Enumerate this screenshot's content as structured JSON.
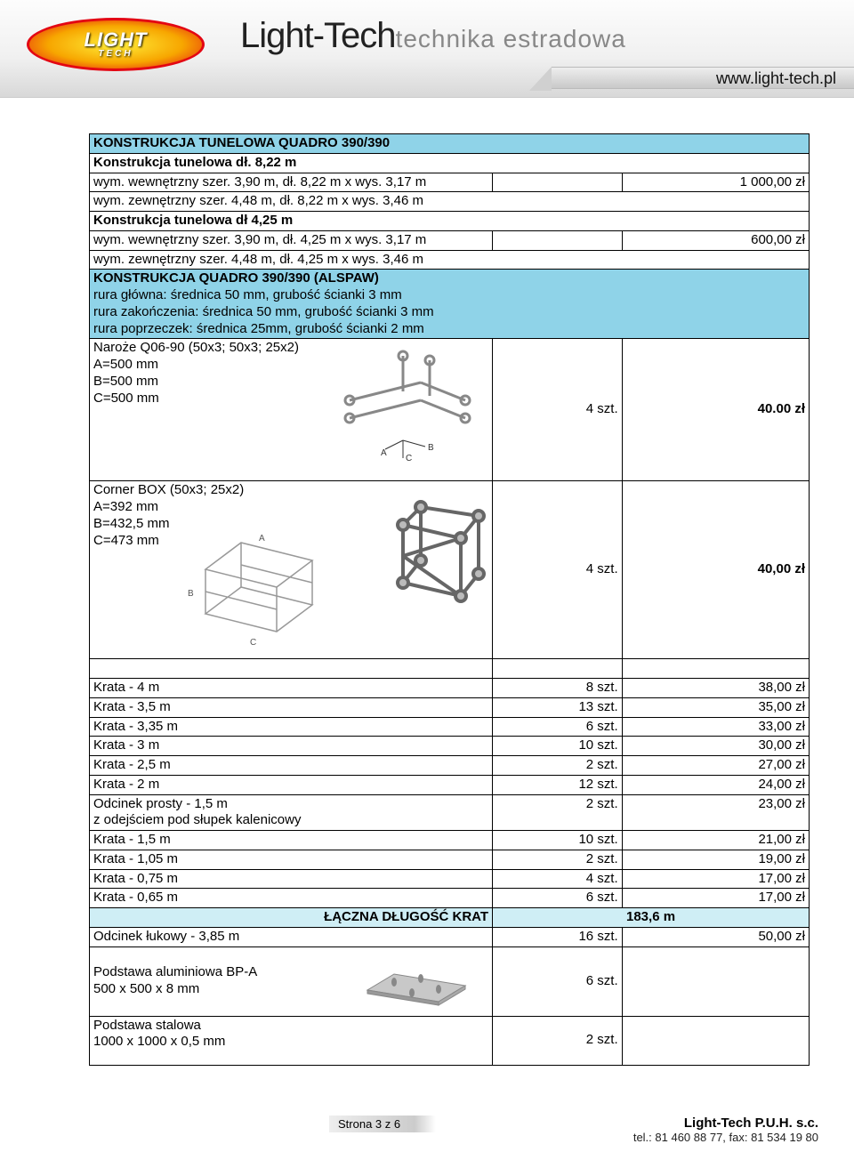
{
  "header": {
    "logo_line1": "LIGHT",
    "logo_line2": "TECH",
    "brand_main": "Light-Tech",
    "brand_sub": "technika estradowa",
    "url": "www.light-tech.pl"
  },
  "sections": {
    "tunel_header": "KONSTRUKCJA TUNELOWA QUADRO 390/390",
    "tunel1_title": "Konstrukcja tunelowa dł. 8,22 m",
    "tunel1_line1": "wym. wewnętrzny szer. 3,90 m, dł. 8,22 m x wys. 3,17 m",
    "tunel1_line2": "wym. zewnętrzny szer. 4,48 m, dł. 8,22 m x wys. 3,46 m",
    "tunel1_price": "1 000,00 zł",
    "tunel2_title": "Konstrukcja tunelowa dł 4,25 m",
    "tunel2_line1": "wym. wewnętrzny szer. 3,90 m, dł. 4,25 m x wys. 3,17 m",
    "tunel2_line2": "wym. zewnętrzny szer. 4,48 m, dł. 4,25 m x wys. 3,46 m",
    "tunel2_price": "600,00 zł",
    "quadro_header": "KONSTRUKCJA QUADRO 390/390 (ALSPAW)",
    "quadro_spec1": "rura główna: średnica 50 mm, grubość ścianki 3 mm",
    "quadro_spec2": "rura zakończenia: średnica 50 mm, grubość ścianki 3 mm",
    "quadro_spec3": "rura poprzeczek: średnica 25mm, grubość ścianki 2 mm",
    "naroze_title": "Naroże Q06-90  (50x3; 50x3; 25x2)",
    "naroze_a": "A=500 mm",
    "naroze_b": "B=500 mm",
    "naroze_c": "C=500 mm",
    "naroze_qty": "4 szt.",
    "naroze_price": "40.00 zł",
    "corner_title": "Corner BOX (50x3; 25x2)",
    "corner_a": "A=392 mm",
    "corner_b": "B=432,5 mm",
    "corner_c": "C=473 mm",
    "corner_qty": "4 szt.",
    "corner_price": "40,00 zł",
    "total_label": "ŁĄCZNA DŁUGOŚĆ KRAT",
    "total_value": "183,6 m"
  },
  "krata_rows": [
    {
      "name": "Krata - 4 m",
      "qty": "8 szt.",
      "price": "38,00 zł"
    },
    {
      "name": "Krata - 3,5 m",
      "qty": "13 szt.",
      "price": "35,00 zł"
    },
    {
      "name": "Krata - 3,35 m",
      "qty": "6 szt.",
      "price": "33,00 zł"
    },
    {
      "name": "Krata - 3 m",
      "qty": "10 szt.",
      "price": "30,00 zł"
    },
    {
      "name": "Krata -  2,5 m",
      "qty": "2 szt.",
      "price": "27,00 zł"
    },
    {
      "name": "Krata - 2 m",
      "qty": "12 szt.",
      "price": "24,00 zł"
    },
    {
      "name": "Odcinek prosty - 1,5 m\nz odejściem pod słupek kalenicowy",
      "qty": "2 szt.",
      "price": "23,00 zł"
    },
    {
      "name": "Krata - 1,5 m",
      "qty": "10 szt.",
      "price": "21,00 zł"
    },
    {
      "name": "Krata - 1,05 m",
      "qty": "2 szt.",
      "price": "19,00 zł"
    },
    {
      "name": "Krata - 0,75 m",
      "qty": "4 szt.",
      "price": "17,00 zł"
    },
    {
      "name": "Krata - 0,65 m",
      "qty": "6 szt.",
      "price": "17,00 zł"
    }
  ],
  "after_total": {
    "odcinek_name": "Odcinek łukowy - 3,85 m",
    "odcinek_qty": "16 szt.",
    "odcinek_price": "50,00 zł",
    "podstawa1_name": "Podstawa aluminiowa BP-A\n500 x 500 x 8 mm",
    "podstawa1_qty": "6 szt.",
    "podstawa2_name": "Podstawa stalowa\n1000 x 1000 x 0,5 mm",
    "podstawa2_qty": "2 szt."
  },
  "footer": {
    "page": "Strona 3 z 6",
    "company": "Light-Tech P.U.H. s.c.",
    "tel": "tel.: 81 460 88 77, fax: 81 534 19 80"
  },
  "style": {
    "header_blue": "#8fd3e8",
    "header_lightblue": "#cfeef5",
    "border": "#000000",
    "col_widths": {
      "name": "56%",
      "qty": "18%",
      "price": "26%"
    }
  }
}
